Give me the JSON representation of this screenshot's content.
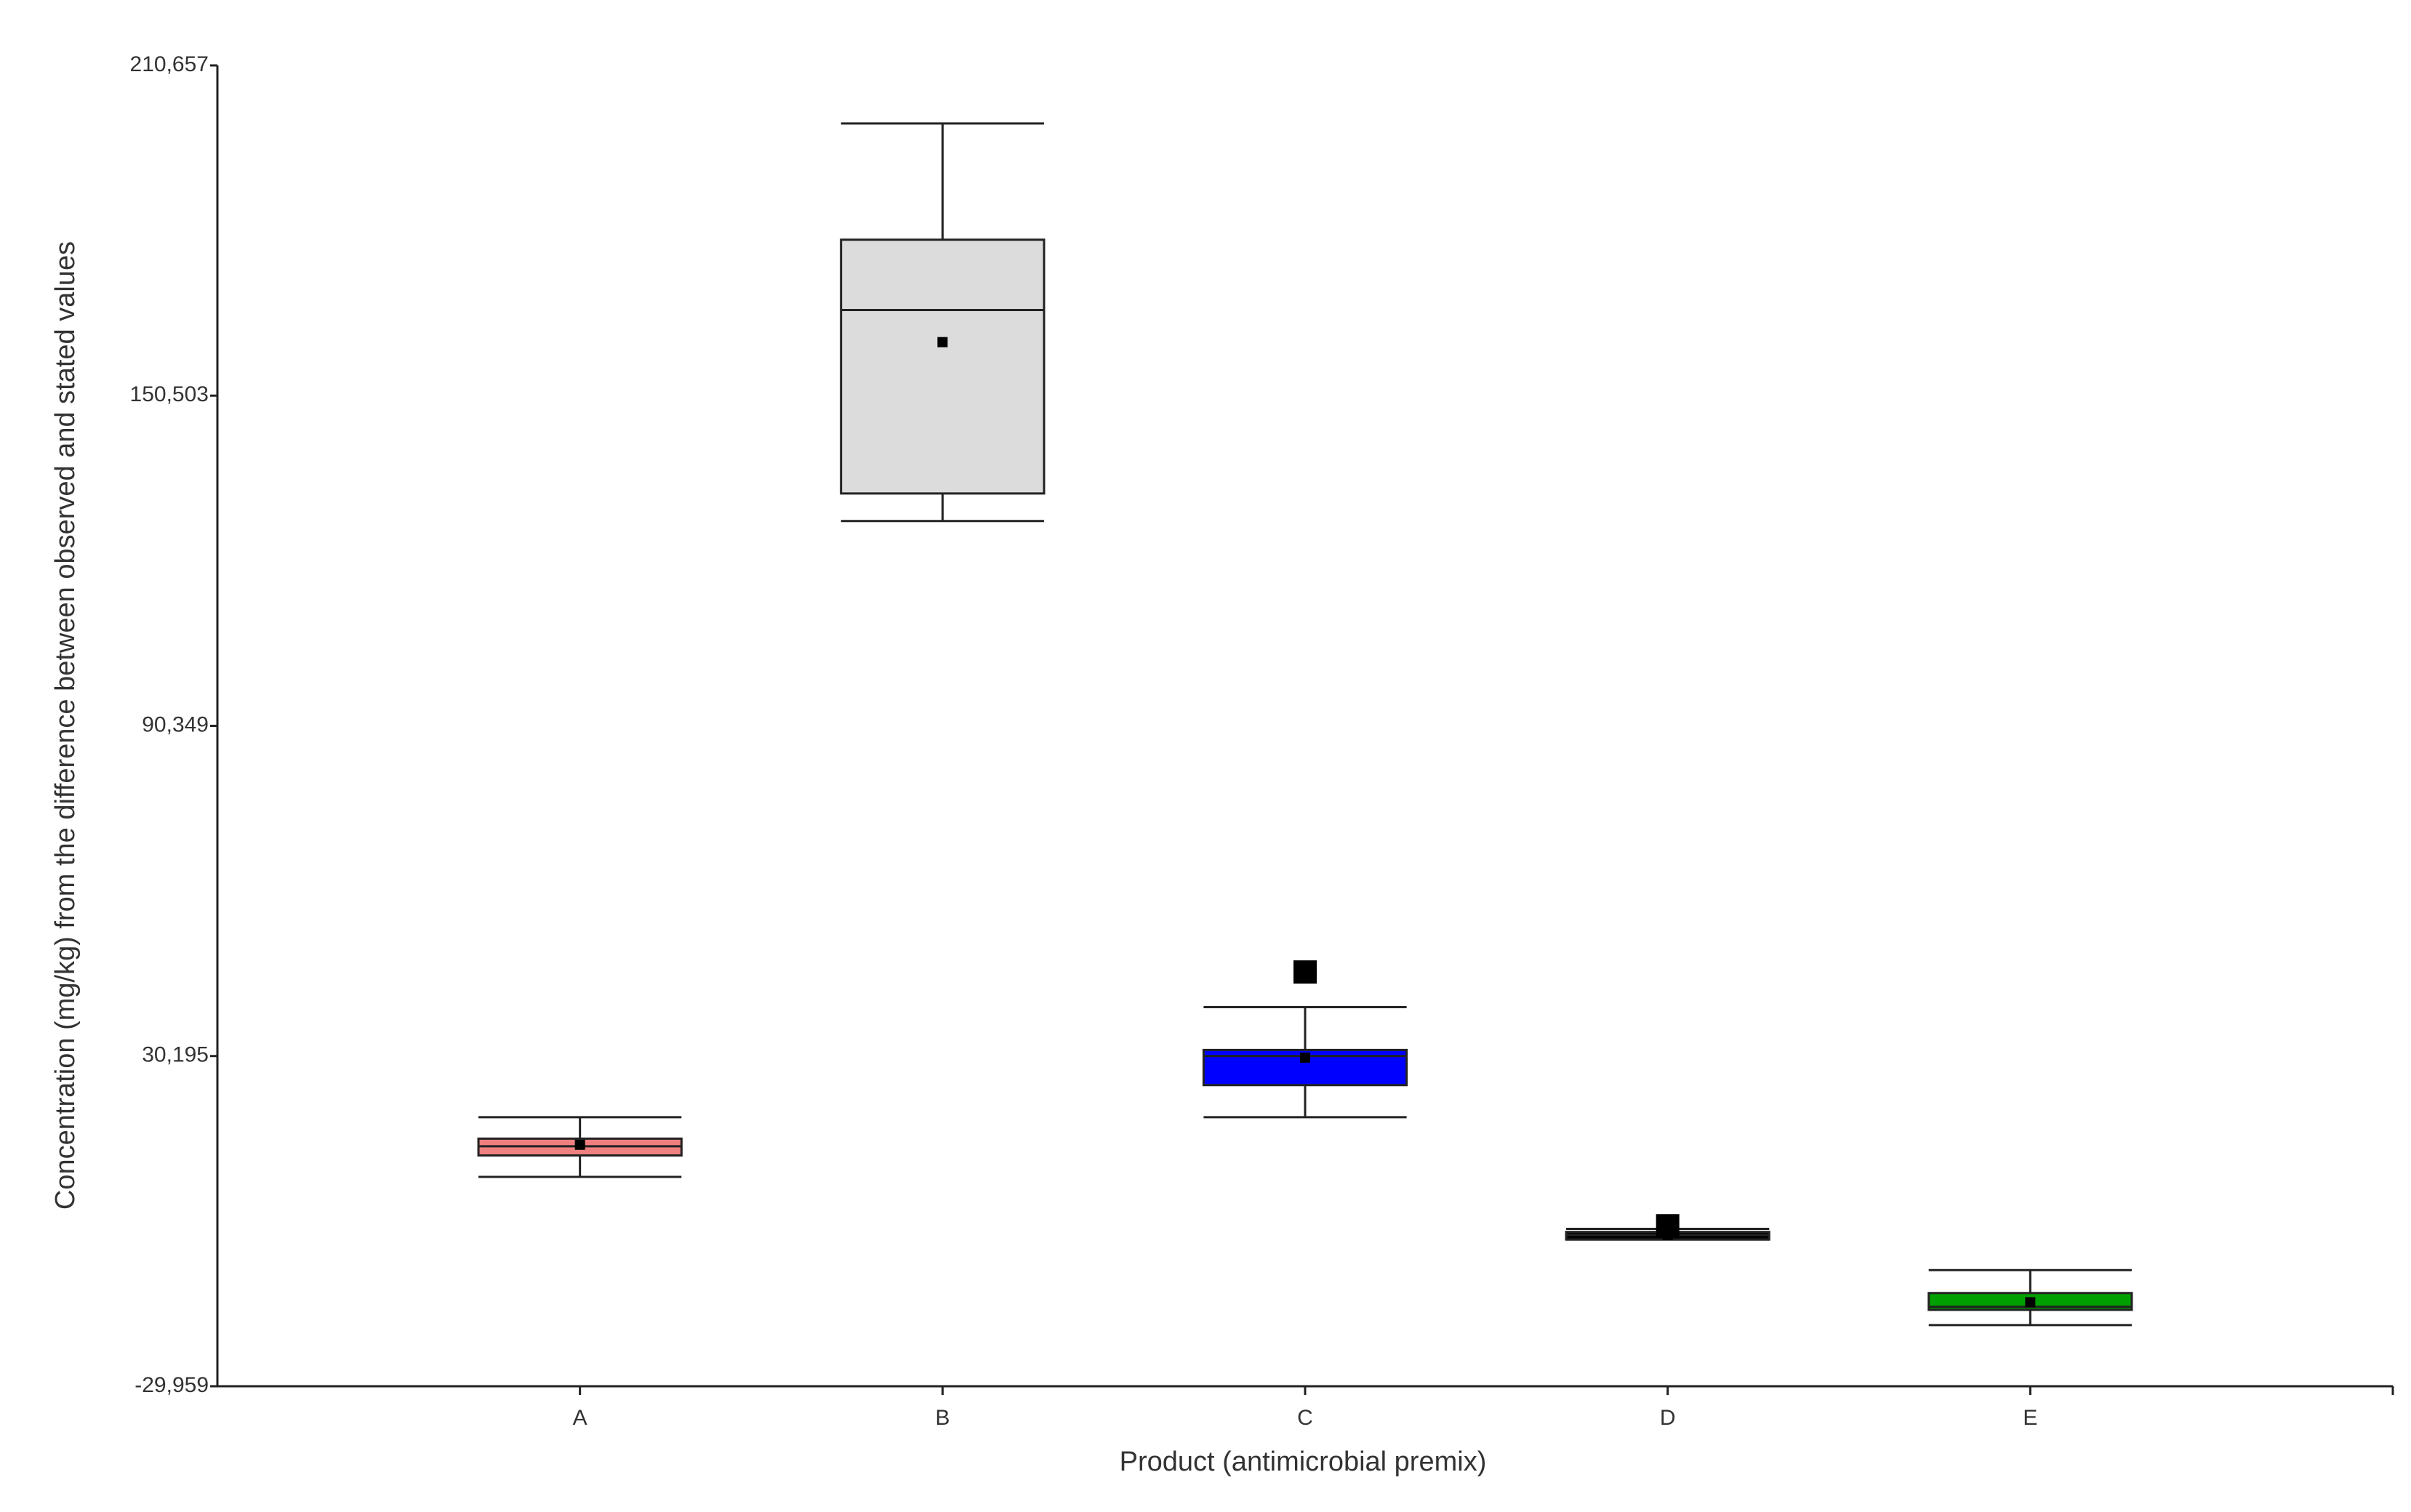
{
  "chart_data": {
    "type": "box",
    "x_label": "Product (antimicrobial premix)",
    "y_label": "Concentration (mg/kg) from the difference between observed and stated values",
    "categories": [
      "A",
      "B",
      "C",
      "D",
      "E"
    ],
    "boxes": [
      {
        "color": "#f08080",
        "min": 8184,
        "q1": 12086,
        "median": 13760,
        "q3": 15150,
        "max": 19049,
        "mean": 14036,
        "outliers": []
      },
      {
        "color": "#dcdcdc",
        "min": 127664,
        "q1": 132677,
        "median": 166097,
        "q3": 178908,
        "max": 200074,
        "mean": 160249,
        "outliers": []
      },
      {
        "color": "#0000ff",
        "min": 19049,
        "q1": 24897,
        "median": 30195,
        "q3": 31303,
        "max": 39101,
        "mean": 29910,
        "outliers": [
          45506
        ]
      },
      {
        "color": "#000000",
        "min": -3232,
        "q1": -3232,
        "median": -2396,
        "q3": -1839,
        "max": -1282,
        "mean": -2396,
        "outliers": [
          -725
        ]
      },
      {
        "color": "#00a000",
        "min": -18827,
        "q1": -16042,
        "median": -15485,
        "q3": -12978,
        "max": -8801,
        "mean": -14650,
        "outliers": []
      }
    ],
    "ylim": [
      -29959,
      210657
    ],
    "yticks": [
      {
        "value": -29959,
        "label": "-29,959"
      },
      {
        "value": 30195,
        "label": "30,195"
      },
      {
        "value": 90349,
        "label": "90,349"
      },
      {
        "value": 150503,
        "label": "150,503"
      },
      {
        "value": 210657,
        "label": "210,657"
      }
    ]
  }
}
